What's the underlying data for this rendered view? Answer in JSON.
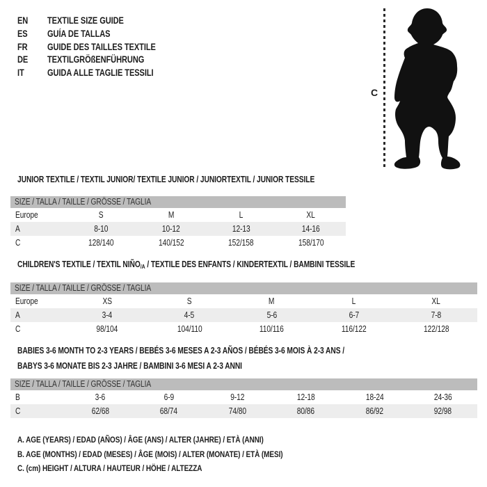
{
  "header": {
    "languages": [
      {
        "code": "EN",
        "label": "TEXTILE SIZE GUIDE"
      },
      {
        "code": "ES",
        "label": "GUÍA DE TALLAS"
      },
      {
        "code": "FR",
        "label": "GUIDE DES TAILLES TEXTILE"
      },
      {
        "code": "DE",
        "label": "TEXTILGRÖßENFÜHRUNG"
      },
      {
        "code": "IT",
        "label": "GUIDA ALLE TAGLIE TESSILI"
      }
    ],
    "figure": {
      "image": "baby-silhouette",
      "measure_label": "C"
    }
  },
  "colors": {
    "text": "#1c1c1c",
    "table_header_bar": "#bcbcbc",
    "row_shaded": "#ededed",
    "silhouette": "#111111"
  },
  "tables": [
    {
      "title_lines": [
        [
          {
            "text": "JUNIOR TEXTILE / TEXTIL JUNIOR/ TEXTILE JUNIOR / JUNIORTEXTIL / JUNIOR TESSILE"
          }
        ]
      ],
      "size_header": "SIZE / TALLA / TAILLE / GRÖSSE / TAGLIA",
      "rows": [
        {
          "label": "Europe",
          "values": [
            "S",
            "M",
            "L",
            "XL"
          ],
          "shaded": false
        },
        {
          "label": "A",
          "values": [
            "8-10",
            "10-12",
            "12-13",
            "14-16"
          ],
          "shaded": true
        },
        {
          "label": "C",
          "values": [
            "128/140",
            "140/152",
            "152/158",
            "158/170"
          ],
          "shaded": false
        }
      ]
    },
    {
      "title_lines": [
        [
          {
            "text": "CHILDREN'S TEXTILE / TEXTIL NIÑO"
          },
          {
            "text": "/A",
            "sub": true
          },
          {
            "text": " / TEXTILE DES ENFANTS / KINDERTEXTIL / BAMBINI TESSILE"
          }
        ]
      ],
      "size_header": "SIZE / TALLA / TAILLE / GRÖSSE / TAGLIA",
      "rows": [
        {
          "label": "Europe",
          "values": [
            "XS",
            "S",
            "M",
            "L",
            "XL"
          ],
          "shaded": false
        },
        {
          "label": "A",
          "values": [
            "3-4",
            "4-5",
            "5-6",
            "6-7",
            "7-8"
          ],
          "shaded": true
        },
        {
          "label": "C",
          "values": [
            "98/104",
            "104/110",
            "110/116",
            "116/122",
            "122/128"
          ],
          "shaded": false
        }
      ]
    },
    {
      "title_lines": [
        [
          {
            "text": "BABIES 3-6 MONTH TO 2-3 YEARS / BEBÉS 3-6 MESES A 2-3 AÑOS / BÉBÉS 3-6 MOIS À 2-3 ANS /"
          }
        ],
        [
          {
            "text": "BABYS 3-6 MONATE BIS 2-3 JAHRE / BAMBINI 3-6 MESI A 2-3 ANNI"
          }
        ]
      ],
      "size_header": "SIZE / TALLA / TAILLE / GRÖSSE / TAGLIA",
      "rows": [
        {
          "label": "B",
          "values": [
            "3-6",
            "6-9",
            "9-12",
            "12-18",
            "18-24",
            "24-36"
          ],
          "shaded": false
        },
        {
          "label": "C",
          "values": [
            "62/68",
            "68/74",
            "74/80",
            "80/86",
            "86/92",
            "92/98"
          ],
          "shaded": true
        }
      ]
    }
  ],
  "legend": [
    "A. AGE (YEARS) / EDAD (AÑOS) / ÂGE (ANS) / ALTER (JAHRE) / ETÀ (ANNI)",
    "B. AGE (MONTHS) / EDAD (MESES) / ÂGE (MOIS) / ALTER (MONATE) / ETÀ (MESI)",
    "C. (cm) HEIGHT / ALTURA / HAUTEUR / HÖHE / ALTEZZA"
  ]
}
